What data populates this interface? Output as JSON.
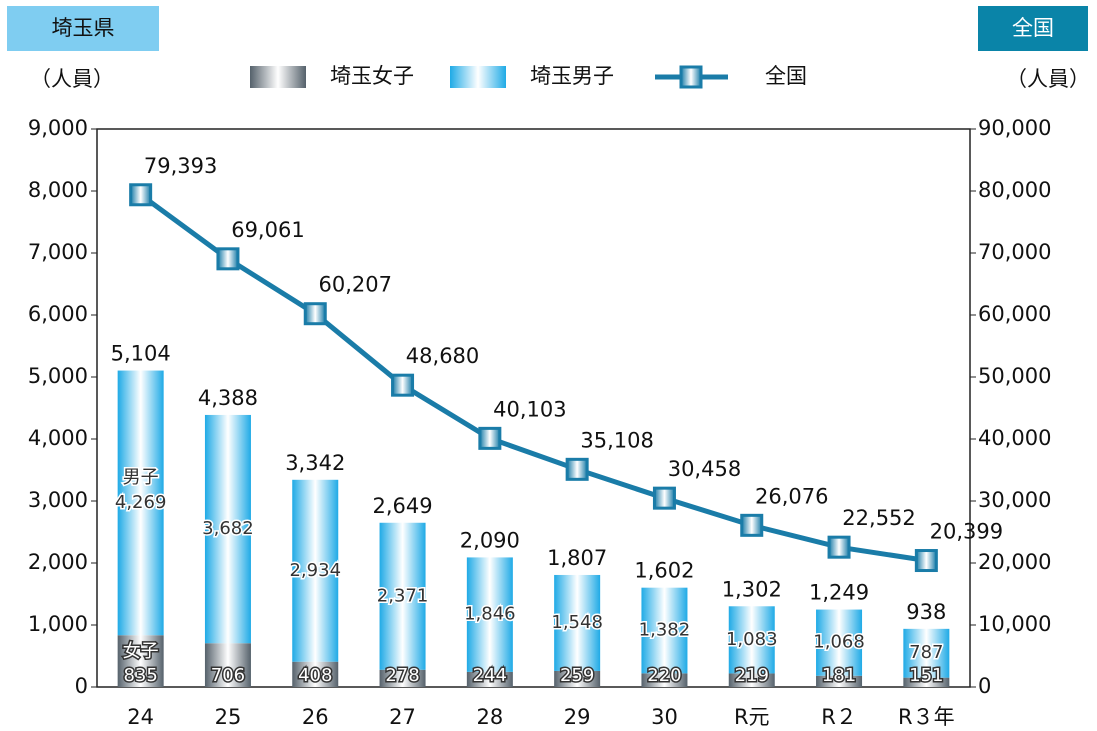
{
  "chart_data": {
    "type": "bar",
    "left_badge": "埼玉県",
    "right_badge": "全国",
    "ylabel": "（人員）",
    "y2label": "（人員）",
    "categories": [
      "24",
      "25",
      "26",
      "27",
      "28",
      "29",
      "30",
      "R元",
      "R２",
      "R３年"
    ],
    "series": [
      {
        "name": "埼玉女子",
        "color": "#55616b",
        "type": "bar",
        "values": [
          835,
          706,
          408,
          278,
          244,
          259,
          220,
          219,
          181,
          151
        ]
      },
      {
        "name": "埼玉男子",
        "color": "#1faae6",
        "type": "bar",
        "values": [
          4269,
          3682,
          2934,
          2371,
          1846,
          1548,
          1382,
          1083,
          1068,
          787
        ],
        "value_labels": [
          "4,269",
          "3,682",
          "2,934",
          "2,371",
          "1,846",
          "1,548",
          "1,382",
          "1,083",
          "1,068",
          "787"
        ]
      },
      {
        "name": "全国",
        "color": "#1a7ca8",
        "type": "line",
        "axis": "y2",
        "values": [
          79393,
          69061,
          60207,
          48680,
          40103,
          35108,
          30458,
          26076,
          22552,
          20399
        ],
        "value_labels": [
          "79,393",
          "69,061",
          "60,207",
          "48,680",
          "40,103",
          "35,108",
          "30,458",
          "26,076",
          "22,552",
          "20,399"
        ]
      }
    ],
    "total_labels": [
      "5,104",
      "4,388",
      "3,342",
      "2,649",
      "2,090",
      "1,807",
      "1,602",
      "1,302",
      "1,249",
      "938"
    ],
    "annotations": [
      "男子",
      "女子"
    ],
    "ylim": [
      0,
      9000
    ],
    "yticks": [
      0,
      {
        "value": 1000,
        "label": "1,000"
      },
      {
        "value": 2000,
        "label": "2,000"
      },
      {
        "value": 3000,
        "label": "3,000"
      },
      {
        "value": 4000,
        "label": "4,000"
      },
      {
        "value": 5000,
        "label": "5,000"
      },
      {
        "value": 6000,
        "label": "6,000"
      },
      {
        "value": 7000,
        "label": "7,000"
      },
      {
        "value": 8000,
        "label": "8,000"
      },
      {
        "value": 9000,
        "label": "9,000"
      }
    ],
    "y2lim": [
      0,
      90000
    ],
    "y2ticks": [
      0,
      {
        "value": 10000,
        "label": "10,000"
      },
      {
        "value": 20000,
        "label": "20,000"
      },
      {
        "value": 30000,
        "label": "30,000"
      },
      {
        "value": 40000,
        "label": "40,000"
      },
      {
        "value": 50000,
        "label": "50,000"
      },
      {
        "value": 60000,
        "label": "60,000"
      },
      {
        "value": 70000,
        "label": "70,000"
      },
      {
        "value": 80000,
        "label": "80,000"
      },
      {
        "value": 90000,
        "label": "90,000"
      }
    ]
  }
}
